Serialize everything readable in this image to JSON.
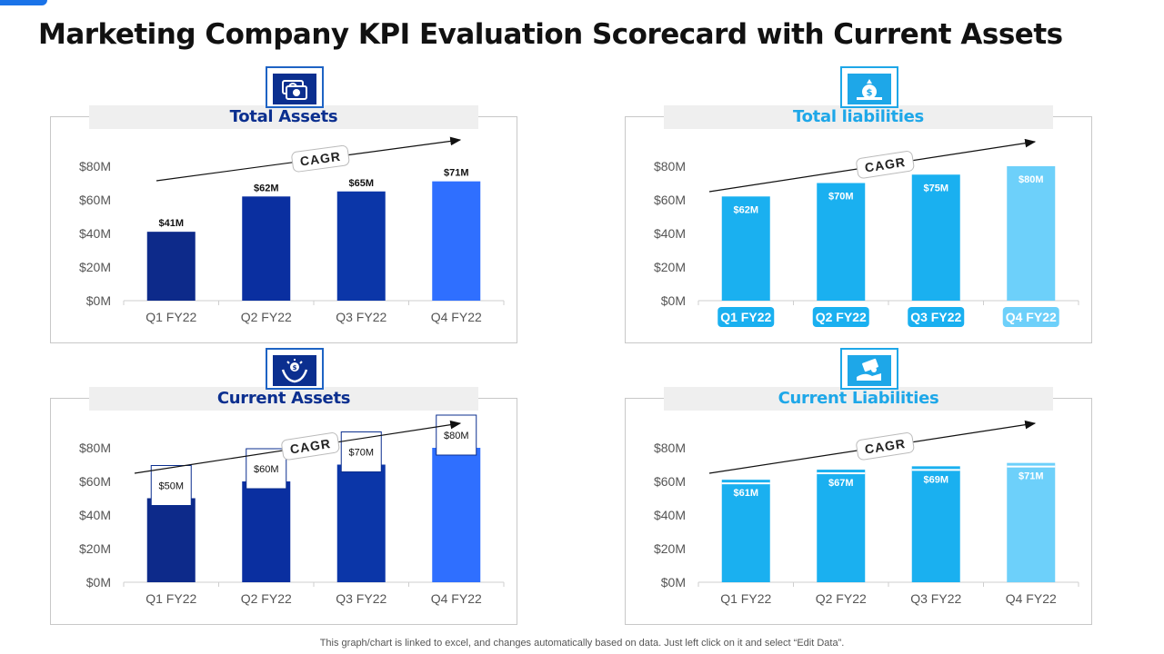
{
  "title": "Marketing Company KPI Evaluation Scorecard with Current Assets",
  "footer": "This graph/chart is linked to excel,  and changes automatically based on data. Just left click on it and select “Edit Data”.",
  "trend_label": "CAGR",
  "colors": {
    "dark_navy": "#0d2a8a",
    "navy": "#0a2fa0",
    "royal": "#0b36a8",
    "bright_blue": "#2f6fff",
    "sky": "#1ab0f0",
    "light_sky": "#6dd0fa",
    "header_dark": "#0b2f8f",
    "header_light": "#1ea7e8",
    "axis_text": "#555555"
  },
  "chart_data": [
    {
      "type": "bar",
      "title": "Total Assets",
      "icon": "money-cash-icon",
      "categories": [
        "Q1 FY22",
        "Q2 FY22",
        "Q3 FY22",
        "Q4 FY22"
      ],
      "values": [
        41,
        62,
        65,
        71
      ],
      "data_labels": [
        "$41M",
        "$62M",
        "$65M",
        "$71M"
      ],
      "y_ticks": [
        "$0M",
        "$20M",
        "$40M",
        "$60M",
        "$80M"
      ],
      "ylim": [
        0,
        80
      ],
      "bar_colors": [
        "#0d2a8a",
        "#0a2fa0",
        "#0b36a8",
        "#2f6fff"
      ],
      "label_style": "above",
      "tick_style": "plain",
      "grid": false
    },
    {
      "type": "bar",
      "title": "Total liabilities",
      "icon": "money-bag-icon",
      "categories": [
        "Q1 FY22",
        "Q2 FY22",
        "Q3 FY22",
        "Q4 FY22"
      ],
      "values": [
        62,
        70,
        75,
        80
      ],
      "data_labels": [
        "$62M",
        "$70M",
        "$75M",
        "$80M"
      ],
      "y_ticks": [
        "$0M",
        "$20M",
        "$40M",
        "$60M",
        "$80M"
      ],
      "ylim": [
        0,
        80
      ],
      "bar_colors": [
        "#1ab0f0",
        "#1ab0f0",
        "#1ab0f0",
        "#6dd0fa"
      ],
      "label_style": "inside",
      "tick_style": "pill",
      "grid": false
    },
    {
      "type": "bar",
      "title": "Current Assets",
      "icon": "hands-coin-icon",
      "categories": [
        "Q1 FY22",
        "Q2 FY22",
        "Q3 FY22",
        "Q4 FY22"
      ],
      "values": [
        50,
        60,
        70,
        80
      ],
      "data_labels": [
        "$50M",
        "$60M",
        "$70M",
        "$80M"
      ],
      "y_ticks": [
        "$0M",
        "$20M",
        "$40M",
        "$60M",
        "$80M"
      ],
      "ylim": [
        0,
        80
      ],
      "bar_colors": [
        "#0d2a8a",
        "#0a2fa0",
        "#0b36a8",
        "#2f6fff"
      ],
      "label_style": "box",
      "tick_style": "plain",
      "grid": false
    },
    {
      "type": "bar",
      "title": "Current Liabilities",
      "icon": "hand-cash-icon",
      "categories": [
        "Q1 FY22",
        "Q2 FY22",
        "Q3 FY22",
        "Q4 FY22"
      ],
      "values": [
        61,
        67,
        69,
        71
      ],
      "data_labels": [
        "$61M",
        "$67M",
        "$69M",
        "$71M"
      ],
      "y_ticks": [
        "$0M",
        "$20M",
        "$40M",
        "$60M",
        "$80M"
      ],
      "ylim": [
        0,
        80
      ],
      "bar_colors": [
        "#1ab0f0",
        "#1ab0f0",
        "#1ab0f0",
        "#6dd0fa"
      ],
      "label_style": "inside-stripe",
      "tick_style": "plain",
      "grid": false
    }
  ]
}
